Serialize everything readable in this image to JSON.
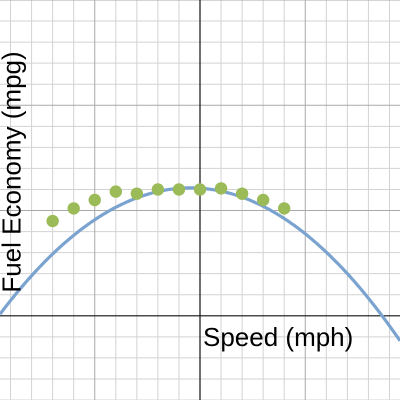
{
  "chart_data": {
    "type": "scatter",
    "xlabel": "Speed (mph)",
    "ylabel": "Fuel Economy (mpg)",
    "xlim": [
      -9.5,
      9.5
    ],
    "ylim": [
      -4,
      15
    ],
    "grid": true,
    "minor_grid_step": 1,
    "major_grid_step": 5,
    "points": [
      {
        "x": -7,
        "y": 4.5
      },
      {
        "x": -6,
        "y": 5.1
      },
      {
        "x": -5,
        "y": 5.5
      },
      {
        "x": -4,
        "y": 5.9
      },
      {
        "x": -3,
        "y": 5.8
      },
      {
        "x": -2,
        "y": 6.0
      },
      {
        "x": -1,
        "y": 6.0
      },
      {
        "x": 0,
        "y": 6.0
      },
      {
        "x": 1,
        "y": 6.05
      },
      {
        "x": 2,
        "y": 5.8
      },
      {
        "x": 3,
        "y": 5.5
      },
      {
        "x": 4,
        "y": 5.1
      }
    ],
    "fit_curve": {
      "kind": "quadratic",
      "a": -0.0733,
      "b": -0.0667,
      "c": 6.06
    },
    "colors": {
      "points": "#9bbb59",
      "curve": "#7ba3d0",
      "grid_minor": "#d3d3d3",
      "grid_major": "#a9a9a9",
      "axis": "#111111"
    }
  }
}
